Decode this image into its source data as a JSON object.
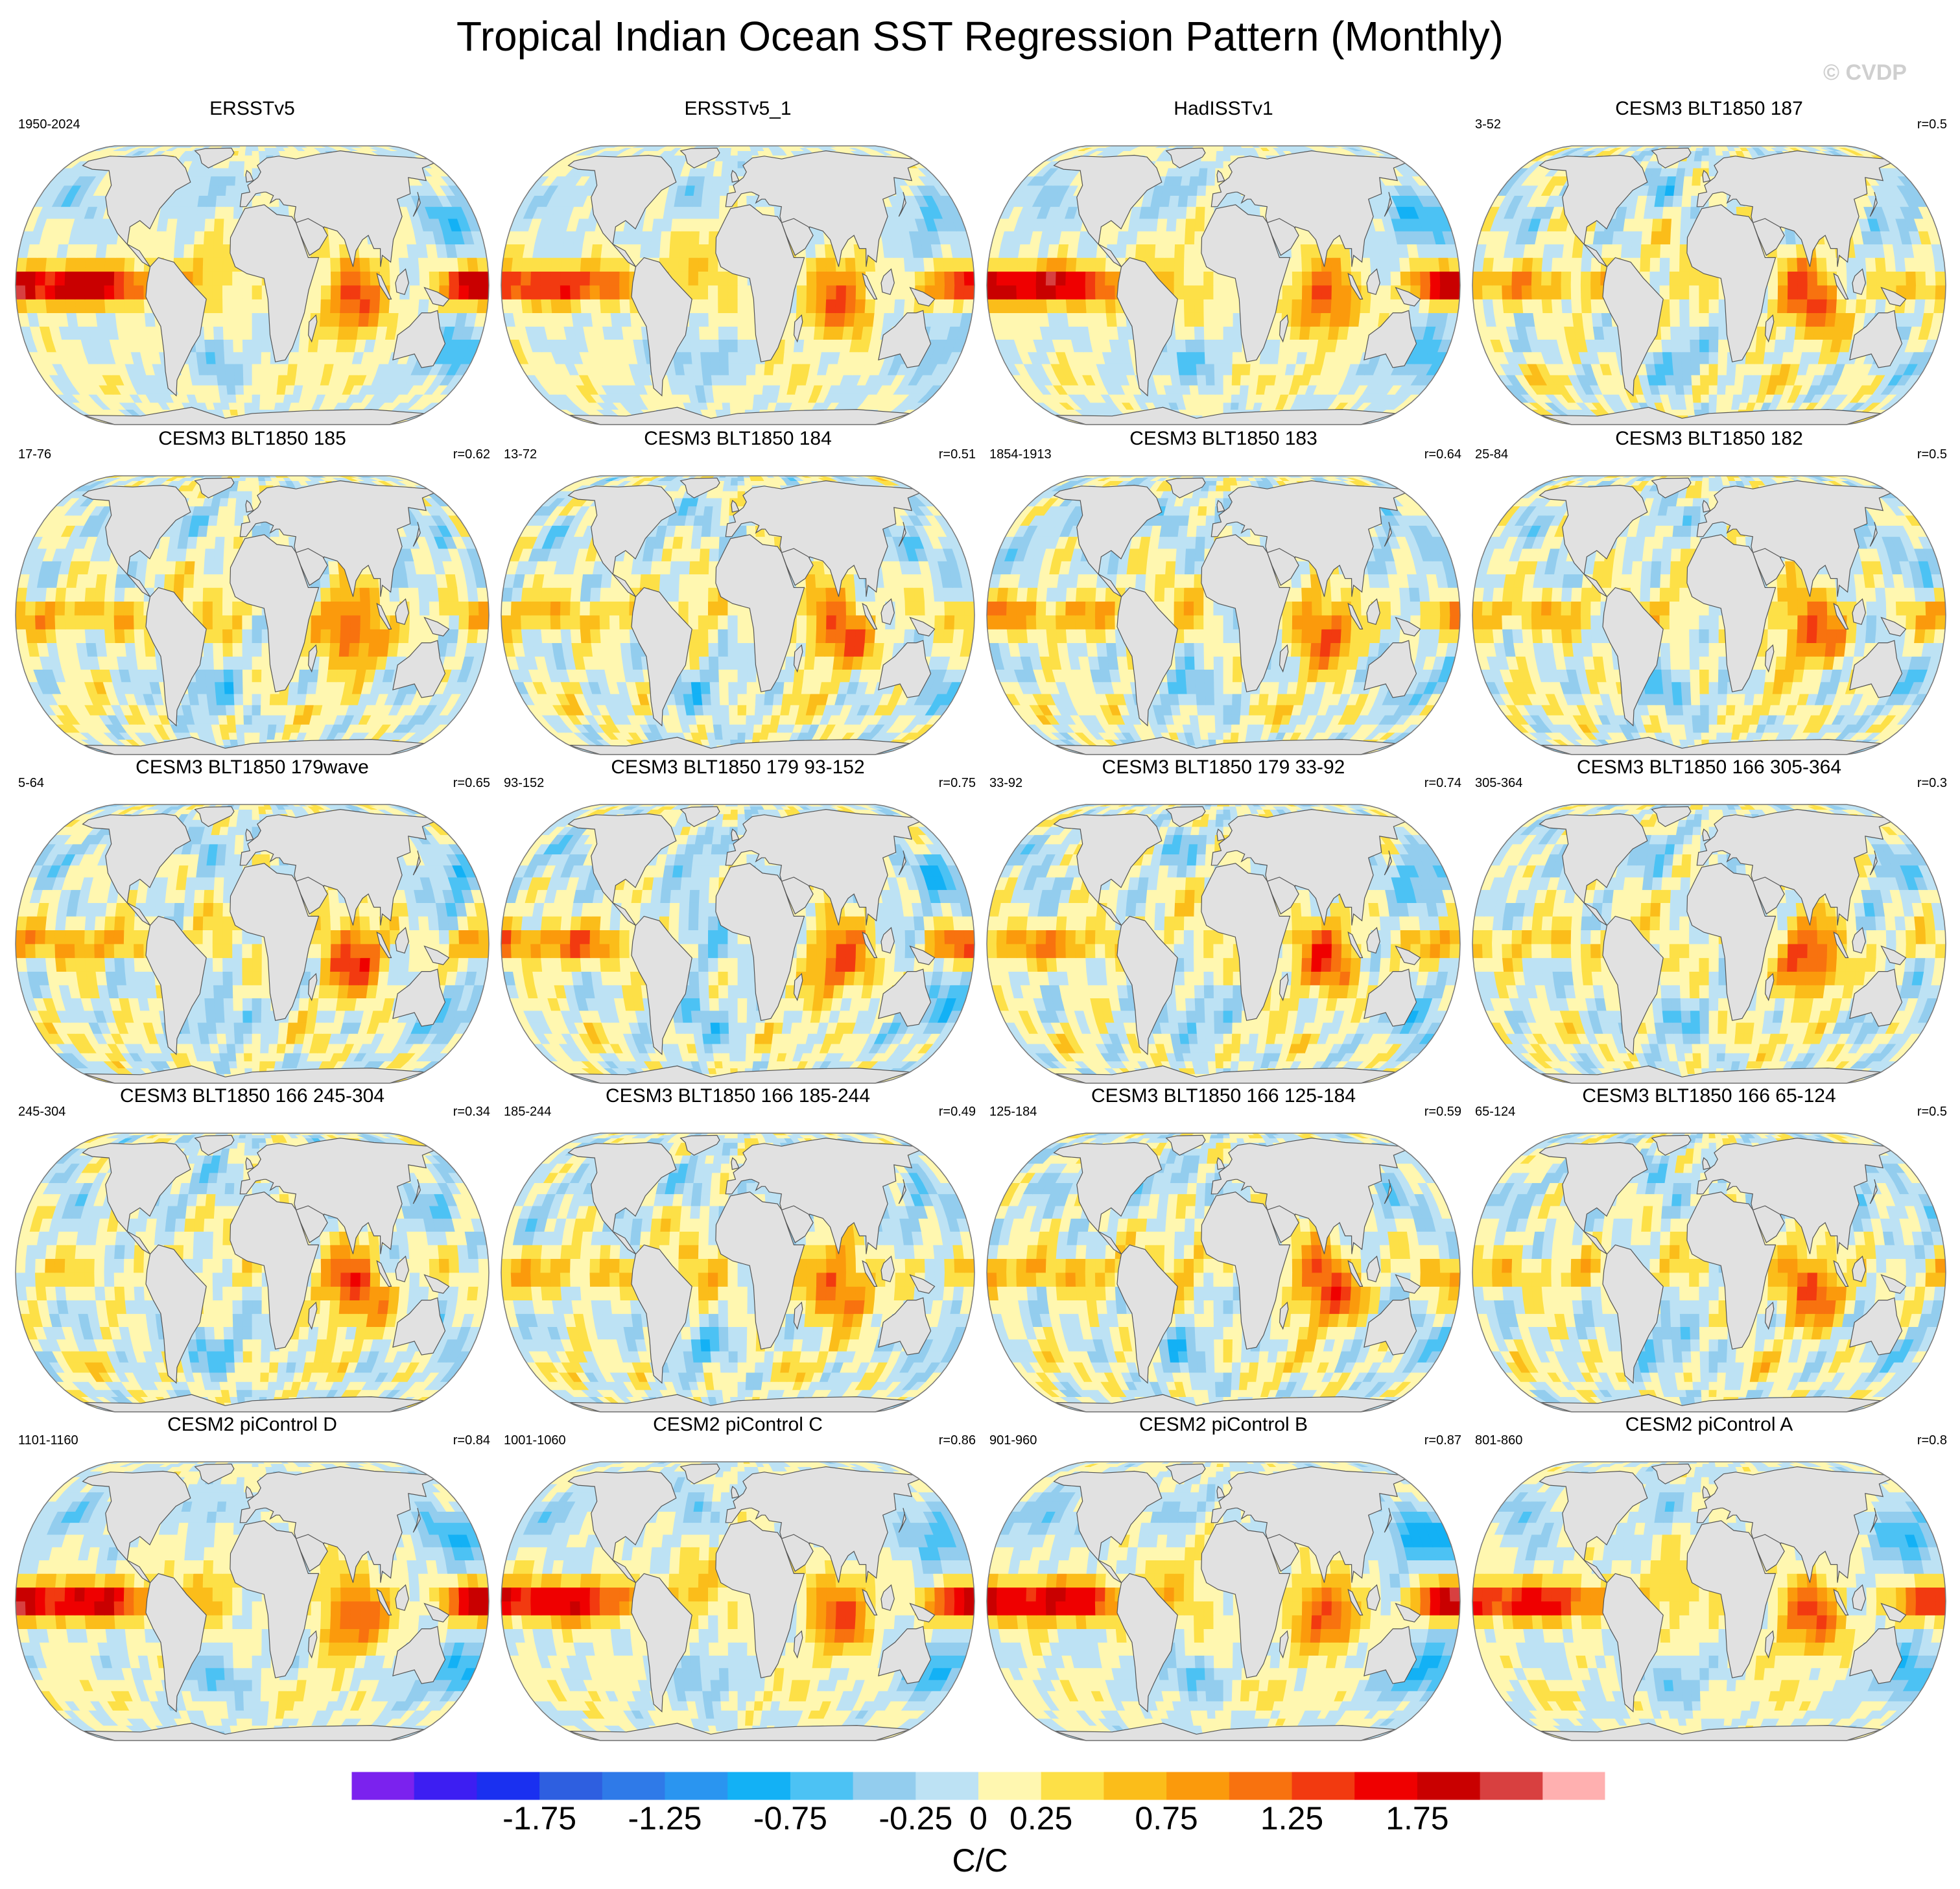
{
  "chart_data": {
    "type": "heatmap",
    "title": "Tropical Indian Ocean SST Regression Pattern (Monthly)",
    "watermark": "© CVDP",
    "units": "C/C",
    "projection": "robinson-like global map",
    "colorbar": {
      "colors": [
        "#7b22ee",
        "#3d1ef2",
        "#1a30f0",
        "#2e5fe0",
        "#2f7ae8",
        "#2a95f0",
        "#13b1f5",
        "#4cc2f4",
        "#93cdee",
        "#bde2f4",
        "#fff7b0",
        "#fde047",
        "#fbbd1a",
        "#fb9a0c",
        "#f8720f",
        "#f23a10",
        "#ef0000",
        "#c90000",
        "#d84040",
        "#ffb0b0"
      ],
      "levels": [
        -2.25,
        -2.0,
        -1.75,
        -1.5,
        -1.25,
        -1.0,
        -0.75,
        -0.5,
        -0.25,
        0,
        0.25,
        0.5,
        0.75,
        1.0,
        1.25,
        1.5,
        1.75,
        2.0,
        2.25
      ],
      "tick_labels": [
        "-1.75",
        "-1.25",
        "-0.75",
        "-0.25",
        "0",
        "0.25",
        "0.75",
        "1.25",
        "1.75"
      ],
      "tick_values": [
        -1.75,
        -1.25,
        -0.75,
        -0.25,
        0,
        0.25,
        0.75,
        1.25,
        1.75
      ]
    },
    "panels": [
      {
        "title": "ERSSTv5",
        "period": "1950-2024",
        "corr": "",
        "pattern": "obs",
        "io": 1.25,
        "enso": 2.1,
        "npac": -0.6,
        "atl": 0.4
      },
      {
        "title": "ERSSTv5_1",
        "period": "",
        "corr": "",
        "pattern": "obs",
        "io": 1.2,
        "enso": 1.6,
        "npac": -0.5,
        "atl": 0.4
      },
      {
        "title": "HadISSTv1",
        "period": "",
        "corr": "",
        "pattern": "obs",
        "io": 1.2,
        "enso": 2.1,
        "npac": -0.7,
        "atl": 0.35
      },
      {
        "title": "CESM3 BLT1850 187",
        "period": "3-52",
        "corr": "r=0.5",
        "pattern": "model",
        "io": 1.3,
        "enso": 0.8,
        "npac": -0.3,
        "atl": 0.3
      },
      {
        "title": "CESM3 BLT1850 185",
        "period": "17-76",
        "corr": "r=0.62",
        "pattern": "model",
        "io": 1.3,
        "enso": 0.7,
        "npac": -0.2,
        "atl": 0.35
      },
      {
        "title": "CESM3 BLT1850 184",
        "period": "13-72",
        "corr": "r=0.51",
        "pattern": "model",
        "io": 1.2,
        "enso": 0.6,
        "npac": -0.3,
        "atl": 0.3
      },
      {
        "title": "CESM3 BLT1850 183",
        "period": "1854-1913",
        "corr": "r=0.64",
        "pattern": "model",
        "io": 1.2,
        "enso": 0.8,
        "npac": -0.4,
        "atl": 0.3
      },
      {
        "title": "CESM3 BLT1850 182",
        "period": "25-84",
        "corr": "r=0.5",
        "pattern": "model",
        "io": 1.2,
        "enso": 0.6,
        "npac": -0.3,
        "atl": 0.3
      },
      {
        "title": "CESM3 BLT1850 179wave",
        "period": "5-64",
        "corr": "r=0.65",
        "pattern": "model",
        "io": 1.3,
        "enso": 0.8,
        "npac": -0.5,
        "atl": 0.2
      },
      {
        "title": "CESM3 BLT1850 179 93-152",
        "period": "93-152",
        "corr": "r=0.75",
        "pattern": "model",
        "io": 1.2,
        "enso": 1.1,
        "npac": -0.6,
        "atl": -0.3
      },
      {
        "title": "CESM3 BLT1850 179 33-92",
        "period": "33-92",
        "corr": "r=0.74",
        "pattern": "model",
        "io": 1.2,
        "enso": 0.9,
        "npac": -0.5,
        "atl": 0.2
      },
      {
        "title": "CESM3 BLT1850 166 305-364",
        "period": "305-364",
        "corr": "r=0.3",
        "pattern": "model",
        "io": 1.3,
        "enso": 0.4,
        "npac": -0.3,
        "atl": 0.2
      },
      {
        "title": "CESM3 BLT1850 166 245-304",
        "period": "245-304",
        "corr": "r=0.34",
        "pattern": "model",
        "io": 1.3,
        "enso": 0.3,
        "npac": -0.3,
        "atl": 0.2
      },
      {
        "title": "CESM3 BLT1850 166 185-244",
        "period": "185-244",
        "corr": "r=0.49",
        "pattern": "model",
        "io": 1.2,
        "enso": 0.6,
        "npac": -0.4,
        "atl": 0.4
      },
      {
        "title": "CESM3 BLT1850 166 125-184",
        "period": "125-184",
        "corr": "r=0.59",
        "pattern": "model",
        "io": 1.4,
        "enso": 0.7,
        "npac": -0.3,
        "atl": 0.4
      },
      {
        "title": "CESM3 BLT1850 166 65-124",
        "period": "65-124",
        "corr": "r=0.5",
        "pattern": "model",
        "io": 1.2,
        "enso": 0.5,
        "npac": -0.3,
        "atl": 0.2
      },
      {
        "title": "CESM2 piControl D",
        "period": "1101-1160",
        "corr": "r=0.84",
        "pattern": "cesm2",
        "io": 1.2,
        "enso": 2.0,
        "npac": -0.7,
        "atl": 0.4
      },
      {
        "title": "CESM2 piControl C",
        "period": "1001-1060",
        "corr": "r=0.86",
        "pattern": "cesm2",
        "io": 1.2,
        "enso": 1.9,
        "npac": -0.7,
        "atl": 0.4
      },
      {
        "title": "CESM2 piControl B",
        "period": "901-960",
        "corr": "r=0.87",
        "pattern": "cesm2",
        "io": 1.2,
        "enso": 2.0,
        "npac": -0.9,
        "atl": 0.4
      },
      {
        "title": "CESM2 piControl A",
        "period": "801-860",
        "corr": "r=0.8",
        "pattern": "cesm2",
        "io": 1.2,
        "enso": 1.7,
        "npac": -0.7,
        "atl": 0.4
      }
    ]
  }
}
